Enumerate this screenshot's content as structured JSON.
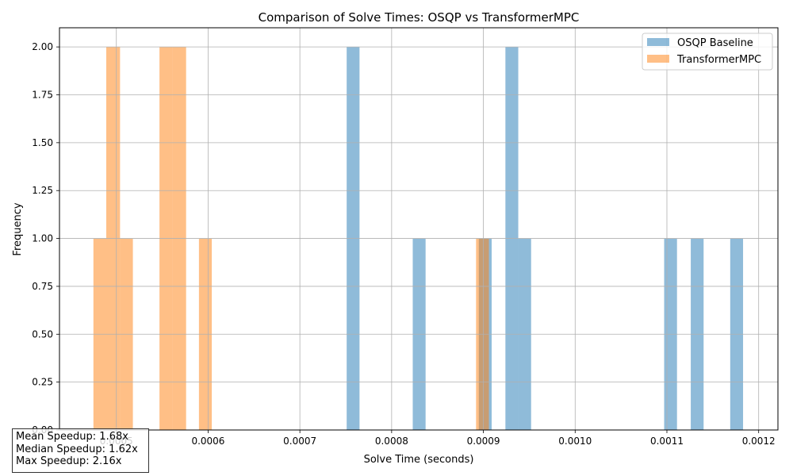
{
  "chart_data": {
    "type": "histogram",
    "title": "Comparison of Solve Times: OSQP vs TransformerMPC",
    "xlabel": "Solve Time (seconds)",
    "ylabel": "Frequency",
    "xlim": [
      0.000438,
      0.001221
    ],
    "ylim": [
      0,
      2.1
    ],
    "x_ticks": [
      "0.0005",
      "0.0006",
      "0.0007",
      "0.0008",
      "0.0009",
      "0.0010",
      "0.0011",
      "0.0012"
    ],
    "x_tick_values": [
      0.0005,
      0.0006,
      0.0007,
      0.0008,
      0.0009,
      0.001,
      0.0011,
      0.0012
    ],
    "y_ticks": [
      "0.00",
      "0.25",
      "0.50",
      "0.75",
      "1.00",
      "1.25",
      "1.50",
      "1.75",
      "2.00"
    ],
    "y_tick_values": [
      0,
      0.25,
      0.5,
      0.75,
      1.0,
      1.25,
      1.5,
      1.75,
      2.0
    ],
    "grid": true,
    "legend_position": "top-right",
    "series": [
      {
        "name": "OSQP Baseline",
        "color": "#1f77b4",
        "alpha": 0.5,
        "bins": [
          {
            "x0": 0.000751,
            "x1": 0.000765,
            "count": 2
          },
          {
            "x0": 0.000823,
            "x1": 0.000837,
            "count": 1
          },
          {
            "x0": 0.000895,
            "x1": 0.000909,
            "count": 1
          },
          {
            "x0": 0.000924,
            "x1": 0.000938,
            "count": 2
          },
          {
            "x0": 0.000938,
            "x1": 0.000952,
            "count": 1
          },
          {
            "x0": 0.001097,
            "x1": 0.001111,
            "count": 1
          },
          {
            "x0": 0.001126,
            "x1": 0.00114,
            "count": 1
          },
          {
            "x0": 0.001169,
            "x1": 0.001183,
            "count": 1
          }
        ]
      },
      {
        "name": "TransformerMPC",
        "color": "#ff7f0e",
        "alpha": 0.5,
        "bins": [
          {
            "x0": 0.000475,
            "x1": 0.000489,
            "count": 1
          },
          {
            "x0": 0.000489,
            "x1": 0.000504,
            "count": 2
          },
          {
            "x0": 0.000504,
            "x1": 0.000518,
            "count": 1
          },
          {
            "x0": 0.000547,
            "x1": 0.000561,
            "count": 2
          },
          {
            "x0": 0.000561,
            "x1": 0.000576,
            "count": 2
          },
          {
            "x0": 0.00059,
            "x1": 0.000604,
            "count": 1
          },
          {
            "x0": 0.000892,
            "x1": 0.000906,
            "count": 1
          }
        ]
      }
    ]
  },
  "stats": {
    "mean": "Mean Speedup: 1.68x",
    "median": "Median Speedup: 1.62x",
    "max": "Max Speedup: 2.16x"
  }
}
